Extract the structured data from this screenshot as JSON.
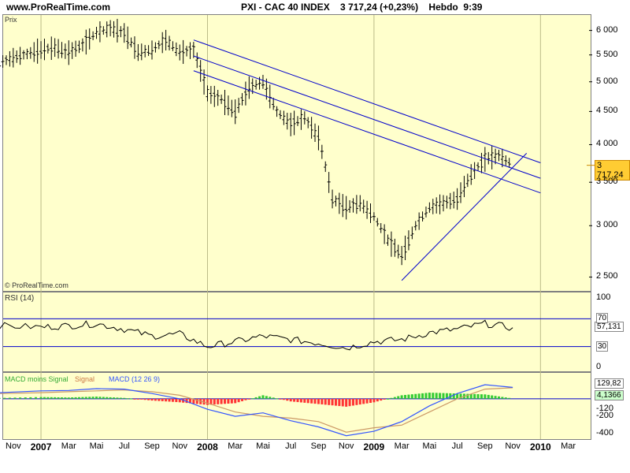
{
  "header": {
    "site": "www.ProRealTime.com",
    "title": "PXI - CAC 40 INDEX    3 717,24 (+0,23%)    Hebdo  9:39"
  },
  "panels": {
    "price": {
      "label": "Prix",
      "watermark": "© ProRealTime.com",
      "last_price": "3 717,24"
    },
    "rsi": {
      "label": "RSI (14)",
      "last_value": "57,131"
    },
    "macd": {
      "label_a": "MACD moins Signal",
      "label_b": "Signal",
      "label_c": "MACD (12 26 9)",
      "last_value_a": "129,82",
      "last_value_b": "4,1366"
    }
  },
  "colors": {
    "panel_bg": "#ffffcc",
    "trendline": "#0000cc",
    "price_bar": "#000000",
    "hist_pos": "#33cc33",
    "hist_neg": "#ff3333",
    "macd_line": "#3355ff",
    "signal_line": "#cc9966",
    "price_tag": "#ffcc33"
  },
  "chart_data": [
    {
      "type": "line",
      "title": "PXI - CAC 40 INDEX",
      "subtitle": "Hebdo",
      "ylabel": "",
      "yscale": "log",
      "ylim": [
        2400,
        6250
      ],
      "yticks": [
        "6 000",
        "5 500",
        "5 000",
        "4 500",
        "4 000",
        "3 500",
        "3 000",
        "2 500"
      ],
      "ytick_values": [
        6000,
        5500,
        5000,
        4500,
        4000,
        3500,
        3000,
        2500
      ],
      "x_labels": [
        "Nov",
        "2007",
        "Mar",
        "Mai",
        "Jul",
        "Sep",
        "Nov",
        "2008",
        "Mar",
        "Mai",
        "Jul",
        "Sep",
        "Nov",
        "2009",
        "Mar",
        "Mai",
        "Jul",
        "Sep",
        "Nov",
        "2010",
        "Mar"
      ],
      "x_label_bold": [
        false,
        true,
        false,
        false,
        false,
        false,
        false,
        true,
        false,
        false,
        false,
        false,
        false,
        true,
        false,
        false,
        false,
        false,
        false,
        true,
        false
      ],
      "x_dates": [
        "2006-11",
        "2007-01",
        "2007-03",
        "2007-05",
        "2007-07",
        "2007-09",
        "2007-11",
        "2008-01",
        "2008-03",
        "2008-05",
        "2008-07",
        "2008-09",
        "2008-11",
        "2009-01",
        "2009-03",
        "2009-05",
        "2009-07",
        "2009-09",
        "2009-11",
        "2010-01",
        "2010-03"
      ],
      "series": [
        {
          "name": "",
          "x": [
            "2006-10",
            "2006-11",
            "2006-12",
            "2007-01",
            "2007-02",
            "2007-03",
            "2007-04",
            "2007-05",
            "2007-06",
            "2007-07",
            "2007-08",
            "2007-09",
            "2007-10",
            "2007-11",
            "2007-12",
            "2008-01",
            "2008-02",
            "2008-03",
            "2008-04",
            "2008-05",
            "2008-06",
            "2008-07",
            "2008-08",
            "2008-09",
            "2008-10",
            "2008-11",
            "2008-12",
            "2009-01",
            "2009-02",
            "2009-03",
            "2009-04",
            "2009-05",
            "2009-06",
            "2009-07",
            "2009-08",
            "2009-09",
            "2009-10",
            "2009-11"
          ],
          "y": [
            5350,
            5450,
            5520,
            5600,
            5650,
            5550,
            5700,
            5950,
            6050,
            5950,
            5550,
            5600,
            5800,
            5550,
            5600,
            4800,
            4700,
            4500,
            4900,
            5000,
            4500,
            4300,
            4400,
            4100,
            3300,
            3200,
            3250,
            3100,
            2850,
            2700,
            3000,
            3200,
            3250,
            3300,
            3600,
            3800,
            3850,
            3717
          ]
        }
      ],
      "trendlines": [
        {
          "from": [
            "2007-12",
            5800
          ],
          "to": [
            "2010-01",
            3750
          ]
        },
        {
          "from": [
            "2007-12",
            5480
          ],
          "to": [
            "2010-01",
            3550
          ]
        },
        {
          "from": [
            "2007-12",
            5200
          ],
          "to": [
            "2010-01",
            3370
          ]
        },
        {
          "from": [
            "2009-03",
            2470
          ],
          "to": [
            "2009-12",
            3880
          ]
        }
      ],
      "last_value": 3717.24
    },
    {
      "type": "line",
      "title": "RSI (14)",
      "ylim": [
        0,
        100
      ],
      "yticks": [
        "100",
        "70",
        "30",
        "0"
      ],
      "ytick_values": [
        100,
        70,
        30,
        0
      ],
      "series": [
        {
          "name": "RSI (14)",
          "x": [
            "2006-10",
            "2007-01",
            "2007-03",
            "2007-05",
            "2007-07",
            "2007-09",
            "2007-11",
            "2008-01",
            "2008-03",
            "2008-05",
            "2008-07",
            "2008-09",
            "2008-11",
            "2009-01",
            "2009-03",
            "2009-05",
            "2009-07",
            "2009-09",
            "2009-11"
          ],
          "y": [
            60,
            58,
            60,
            63,
            55,
            45,
            48,
            30,
            37,
            45,
            40,
            35,
            28,
            37,
            40,
            50,
            55,
            63,
            57.131
          ]
        }
      ],
      "last_value": 57.131
    },
    {
      "type": "bar",
      "title": "MACD (12 26 9)",
      "ylim": [
        -450,
        250
      ],
      "yticks": [
        "-120",
        "-200",
        "-400"
      ],
      "ytick_values": [
        -120,
        -200,
        -400
      ],
      "series": [
        {
          "name": "MACD moins Signal",
          "x": [
            "2006-10",
            "2007-01",
            "2007-03",
            "2007-05",
            "2007-07",
            "2007-09",
            "2007-11",
            "2008-01",
            "2008-03",
            "2008-05",
            "2008-07",
            "2008-09",
            "2008-11",
            "2009-01",
            "2009-03",
            "2009-05",
            "2009-07",
            "2009-09",
            "2009-11"
          ],
          "y": [
            10,
            20,
            15,
            25,
            10,
            -20,
            -40,
            -70,
            -50,
            40,
            -30,
            -60,
            -90,
            -40,
            40,
            70,
            60,
            50,
            4.1366
          ]
        },
        {
          "name": "Signal",
          "x": [
            "2006-10",
            "2007-01",
            "2007-03",
            "2007-05",
            "2007-07",
            "2007-09",
            "2007-11",
            "2008-01",
            "2008-03",
            "2008-05",
            "2008-07",
            "2008-09",
            "2008-11",
            "2009-01",
            "2009-03",
            "2009-05",
            "2009-07",
            "2009-09",
            "2009-11"
          ],
          "y": [
            60,
            70,
            80,
            90,
            100,
            80,
            40,
            -50,
            -150,
            -200,
            -220,
            -260,
            -380,
            -330,
            -300,
            -150,
            0,
            110,
            125
          ]
        },
        {
          "name": "MACD (12 26 9)",
          "x": [
            "2006-10",
            "2007-01",
            "2007-03",
            "2007-05",
            "2007-07",
            "2007-09",
            "2007-11",
            "2008-01",
            "2008-03",
            "2008-05",
            "2008-07",
            "2008-09",
            "2008-11",
            "2009-01",
            "2009-03",
            "2009-05",
            "2009-07",
            "2009-09",
            "2009-11"
          ],
          "y": [
            70,
            90,
            95,
            115,
            110,
            60,
            0,
            -120,
            -200,
            -160,
            -250,
            -320,
            -420,
            -370,
            -260,
            -80,
            60,
            160,
            129.82
          ]
        }
      ],
      "last_value_macd": 129.82,
      "last_value_hist": 4.1366
    }
  ]
}
